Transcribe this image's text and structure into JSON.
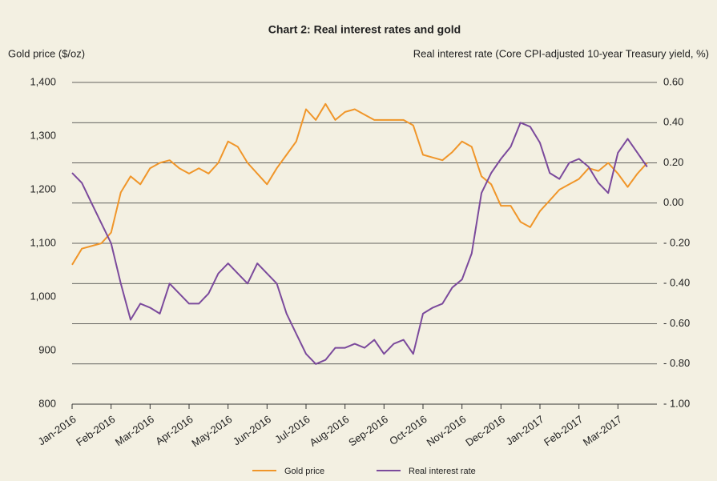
{
  "chart_data": {
    "type": "line",
    "title": "Chart 2: Real interest rates and gold",
    "ylabel": "Gold price ($/oz)",
    "y2label": "Real interest rate (Core CPI-adjusted 10-year Treasury yield, %)",
    "categories": [
      "Jan-2016",
      null,
      null,
      null,
      "Feb-2016",
      null,
      null,
      null,
      "Mar-2016",
      null,
      null,
      null,
      "Apr-2016",
      null,
      null,
      null,
      "May-2016",
      null,
      null,
      null,
      "Jun-2016",
      null,
      null,
      null,
      "Jul-2016",
      null,
      null,
      null,
      "Aug-2016",
      null,
      null,
      null,
      "Sep-2016",
      null,
      null,
      null,
      "Oct-2016",
      null,
      null,
      null,
      "Nov-2016",
      null,
      null,
      null,
      "Dec-2016",
      null,
      null,
      null,
      "Jan-2017",
      null,
      null,
      null,
      "Feb-2017",
      null,
      null,
      null,
      "Mar-2017",
      null,
      null,
      null
    ],
    "series": [
      {
        "name": "Gold price",
        "color": "#f0962a",
        "axis": "y",
        "values": [
          1060,
          1090,
          1095,
          1100,
          1120,
          1195,
          1225,
          1210,
          1240,
          1250,
          1255,
          1240,
          1230,
          1240,
          1230,
          1250,
          1290,
          1280,
          1250,
          1230,
          1210,
          1240,
          1265,
          1290,
          1350,
          1330,
          1360,
          1330,
          1345,
          1350,
          1340,
          1330,
          1330,
          1330,
          1330,
          1320,
          1265,
          1260,
          1255,
          1270,
          1290,
          1280,
          1225,
          1210,
          1170,
          1170,
          1140,
          1130,
          1160,
          1180,
          1200,
          1210,
          1220,
          1240,
          1235,
          1250,
          1230,
          1205,
          1230,
          1250
        ]
      },
      {
        "name": "Real interest rate",
        "color": "#7b4a9c",
        "axis": "y2",
        "values": [
          0.15,
          0.1,
          0.0,
          -0.1,
          -0.2,
          -0.4,
          -0.58,
          -0.5,
          -0.52,
          -0.55,
          -0.4,
          -0.45,
          -0.5,
          -0.5,
          -0.45,
          -0.35,
          -0.3,
          -0.35,
          -0.4,
          -0.3,
          -0.35,
          -0.4,
          -0.55,
          -0.65,
          -0.75,
          -0.8,
          -0.78,
          -0.72,
          -0.72,
          -0.7,
          -0.72,
          -0.68,
          -0.75,
          -0.7,
          -0.68,
          -0.75,
          -0.55,
          -0.52,
          -0.5,
          -0.42,
          -0.38,
          -0.25,
          0.05,
          0.15,
          0.22,
          0.28,
          0.4,
          0.38,
          0.3,
          0.15,
          0.12,
          0.2,
          0.22,
          0.18,
          0.1,
          0.05,
          0.25,
          0.32,
          0.25,
          0.18
        ]
      }
    ],
    "ylim": [
      800,
      1400
    ],
    "yticks": [
      800,
      900,
      {
        "value": 1000,
        "label": "1,000"
      },
      {
        "value": 1100,
        "label": "1,100"
      },
      {
        "value": 1200,
        "label": "1,200"
      },
      {
        "value": 1300,
        "label": "1,300"
      },
      {
        "value": 1400,
        "label": "1,400"
      }
    ],
    "y2lim": [
      -1.0,
      0.6
    ],
    "y2ticks": [
      {
        "value": -1.0,
        "label": "- 1.00"
      },
      {
        "value": -0.8,
        "label": "- 0.80"
      },
      {
        "value": -0.6,
        "label": "- 0.60"
      },
      {
        "value": -0.4,
        "label": "- 0.40"
      },
      {
        "value": -0.2,
        "label": "- 0.20"
      },
      {
        "value": 0,
        "label": "0.00"
      },
      {
        "value": 0.2,
        "label": "0.20"
      },
      {
        "value": 0.4,
        "label": "0.40"
      },
      {
        "value": 0.6,
        "label": "0.60"
      }
    ],
    "grid": true,
    "legend": "bottom"
  }
}
